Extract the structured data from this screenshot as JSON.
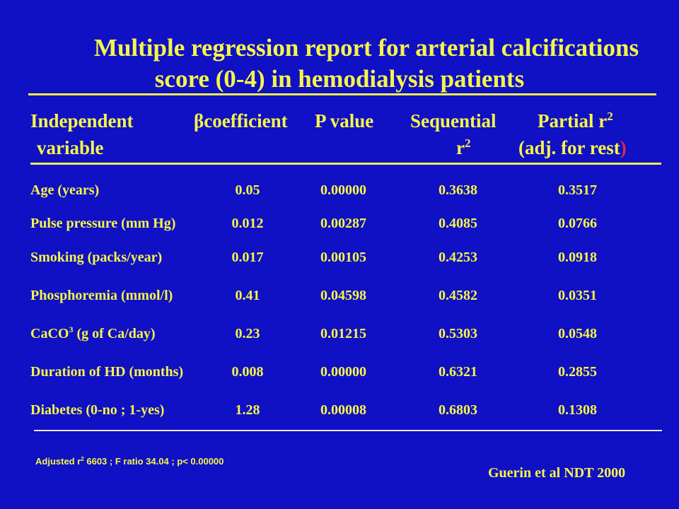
{
  "title": {
    "line1": "Multiple regression report for arterial calcifications",
    "line2": "score (0-4) in hemodialysis   patients"
  },
  "header": {
    "independent": "Independent",
    "variable": "variable",
    "beta_symbol": "β",
    "coefficient": "coefficient",
    "p_value": "P value",
    "sequential": "Sequential",
    "sequential_r": "r",
    "sequential_exp": "2",
    "partial": "Partial r",
    "partial_exp": "2",
    "adj": "(adj. for rest",
    "adj_paren": ")"
  },
  "rows": [
    {
      "variable": "Age (years)",
      "beta": "0.05",
      "p": "0.00000",
      "seq": "0.3638",
      "partial": "0.3517"
    },
    {
      "variable": "Pulse pressure (mm Hg)",
      "beta": "0.012",
      "p": "0.00287",
      "seq": "0.4085",
      "partial": "0.0766"
    },
    {
      "variable": "Smoking  (packs/year)",
      "beta": "0.017",
      "p": "0.00105",
      "seq": "0.4253",
      "partial": "0.0918"
    },
    {
      "variable": "Phosphoremia (mmol/l)",
      "beta": "0.41",
      "p": "0.04598",
      "seq": "0.4582",
      "partial": "0.0351"
    },
    {
      "variable_pre": "CaCO",
      "variable_sup": "3",
      "variable_post": " (g of Ca/day)",
      "beta": "0.23",
      "p": "0.01215",
      "seq": "0.5303",
      "partial": "0.0548"
    },
    {
      "variable": "Duration of HD (months)",
      "beta": "0.008",
      "p": "0.00000",
      "seq": "0.6321",
      "partial": "0.2855"
    },
    {
      "variable": "Diabetes (0-no ; 1-yes)",
      "beta": "1.28",
      "p": "0.00008",
      "seq": "0.6803",
      "partial": "0.1308"
    }
  ],
  "footnote": {
    "pre": "Adjusted r",
    "sup": "2",
    "post": " 6603 ; F ratio 34.04 ; p< 0.00000"
  },
  "citation": "Guerin et al NDT 2000",
  "colors": {
    "background": "#1010c4",
    "text": "#f5f54a",
    "accent": "#e0284a"
  }
}
